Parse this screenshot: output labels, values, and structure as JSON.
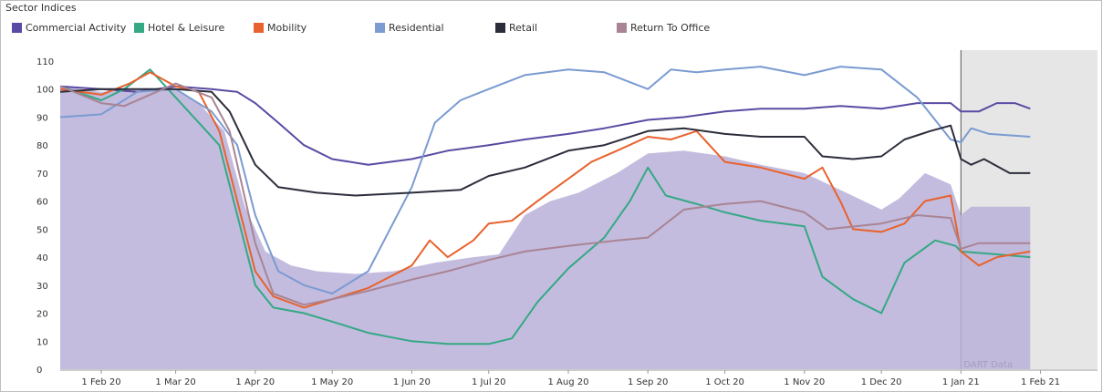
{
  "chart_data": {
    "type": "line",
    "title": "Sector Indices",
    "ylim": [
      0,
      110
    ],
    "yticks": [
      0,
      10,
      20,
      30,
      40,
      50,
      60,
      70,
      80,
      90,
      100,
      110
    ],
    "xticks": [
      {
        "date": "2020-02-01",
        "label": "1 Feb 20"
      },
      {
        "date": "2020-03-01",
        "label": "1 Mar 20"
      },
      {
        "date": "2020-04-01",
        "label": "1 Apr 20"
      },
      {
        "date": "2020-05-01",
        "label": "1 May 20"
      },
      {
        "date": "2020-06-01",
        "label": "1 Jun 20"
      },
      {
        "date": "2020-07-01",
        "label": "1 Jul 20"
      },
      {
        "date": "2020-08-01",
        "label": "1 Aug 20"
      },
      {
        "date": "2020-09-01",
        "label": "1 Sep 20"
      },
      {
        "date": "2020-10-01",
        "label": "1 Oct 20"
      },
      {
        "date": "2020-11-01",
        "label": "1 Nov 20"
      },
      {
        "date": "2020-12-01",
        "label": "1 Dec 20"
      },
      {
        "date": "2021-01-01",
        "label": "1 Jan 21"
      },
      {
        "date": "2021-02-01",
        "label": "1 Feb 21"
      }
    ],
    "xrange": [
      "2020-01-16",
      "2021-02-04"
    ],
    "shaded_region": {
      "start": "2021-01-01",
      "end": "2021-02-04",
      "label": "DART Data",
      "color": "#e6e6e6"
    },
    "grid": false,
    "legend_position": "top",
    "series": [
      {
        "name": "Commercial Activity",
        "color": "#5b4aa3",
        "style": "line",
        "points": [
          [
            "2020-01-16",
            101
          ],
          [
            "2020-02-01",
            100
          ],
          [
            "2020-02-15",
            99
          ],
          [
            "2020-03-01",
            101
          ],
          [
            "2020-03-15",
            100
          ],
          [
            "2020-03-25",
            99
          ],
          [
            "2020-04-01",
            95
          ],
          [
            "2020-04-10",
            88
          ],
          [
            "2020-04-20",
            80
          ],
          [
            "2020-05-01",
            75
          ],
          [
            "2020-05-15",
            73
          ],
          [
            "2020-06-01",
            75
          ],
          [
            "2020-06-15",
            78
          ],
          [
            "2020-07-01",
            80
          ],
          [
            "2020-07-15",
            82
          ],
          [
            "2020-08-01",
            84
          ],
          [
            "2020-08-15",
            86
          ],
          [
            "2020-09-01",
            89
          ],
          [
            "2020-09-15",
            90
          ],
          [
            "2020-10-01",
            92
          ],
          [
            "2020-10-15",
            93
          ],
          [
            "2020-11-01",
            93
          ],
          [
            "2020-11-15",
            94
          ],
          [
            "2020-12-01",
            93
          ],
          [
            "2020-12-15",
            95
          ],
          [
            "2020-12-28",
            95
          ],
          [
            "2021-01-01",
            92
          ],
          [
            "2021-01-08",
            92
          ],
          [
            "2021-01-15",
            95
          ],
          [
            "2021-01-22",
            95
          ],
          [
            "2021-01-28",
            93
          ]
        ]
      },
      {
        "name": "Hotel & Leisure",
        "color": "#35a884",
        "style": "line",
        "points": [
          [
            "2020-01-16",
            101
          ],
          [
            "2020-02-01",
            96
          ],
          [
            "2020-02-10",
            100
          ],
          [
            "2020-02-20",
            107
          ],
          [
            "2020-03-01",
            97
          ],
          [
            "2020-03-10",
            88
          ],
          [
            "2020-03-18",
            80
          ],
          [
            "2020-03-25",
            55
          ],
          [
            "2020-04-01",
            30
          ],
          [
            "2020-04-08",
            22
          ],
          [
            "2020-04-20",
            20
          ],
          [
            "2020-05-01",
            17
          ],
          [
            "2020-05-15",
            13
          ],
          [
            "2020-06-01",
            10
          ],
          [
            "2020-06-15",
            9
          ],
          [
            "2020-07-01",
            9
          ],
          [
            "2020-07-10",
            11
          ],
          [
            "2020-07-20",
            24
          ],
          [
            "2020-08-01",
            36
          ],
          [
            "2020-08-15",
            47
          ],
          [
            "2020-08-25",
            60
          ],
          [
            "2020-09-01",
            72
          ],
          [
            "2020-09-08",
            62
          ],
          [
            "2020-09-20",
            59
          ],
          [
            "2020-10-01",
            56
          ],
          [
            "2020-10-15",
            53
          ],
          [
            "2020-11-01",
            51
          ],
          [
            "2020-11-08",
            33
          ],
          [
            "2020-11-20",
            25
          ],
          [
            "2020-12-01",
            20
          ],
          [
            "2020-12-10",
            38
          ],
          [
            "2020-12-22",
            46
          ],
          [
            "2020-12-30",
            44
          ],
          [
            "2021-01-01",
            42
          ],
          [
            "2021-01-15",
            41
          ],
          [
            "2021-01-28",
            40
          ]
        ]
      },
      {
        "name": "Mobility",
        "color": "#e8622d",
        "style": "line",
        "points": [
          [
            "2020-01-16",
            100
          ],
          [
            "2020-02-01",
            98
          ],
          [
            "2020-02-12",
            102
          ],
          [
            "2020-02-20",
            106
          ],
          [
            "2020-03-01",
            101
          ],
          [
            "2020-03-10",
            99
          ],
          [
            "2020-03-18",
            85
          ],
          [
            "2020-03-25",
            60
          ],
          [
            "2020-04-01",
            35
          ],
          [
            "2020-04-08",
            26
          ],
          [
            "2020-04-20",
            22
          ],
          [
            "2020-05-01",
            25
          ],
          [
            "2020-05-15",
            29
          ],
          [
            "2020-06-01",
            37
          ],
          [
            "2020-06-08",
            46
          ],
          [
            "2020-06-15",
            40
          ],
          [
            "2020-06-25",
            46
          ],
          [
            "2020-07-01",
            52
          ],
          [
            "2020-07-10",
            53
          ],
          [
            "2020-07-20",
            60
          ],
          [
            "2020-08-01",
            68
          ],
          [
            "2020-08-10",
            74
          ],
          [
            "2020-08-20",
            78
          ],
          [
            "2020-09-01",
            83
          ],
          [
            "2020-09-10",
            82
          ],
          [
            "2020-09-20",
            85
          ],
          [
            "2020-10-01",
            74
          ],
          [
            "2020-10-15",
            72
          ],
          [
            "2020-11-01",
            68
          ],
          [
            "2020-11-08",
            72
          ],
          [
            "2020-11-15",
            60
          ],
          [
            "2020-11-20",
            50
          ],
          [
            "2020-12-01",
            49
          ],
          [
            "2020-12-10",
            52
          ],
          [
            "2020-12-18",
            60
          ],
          [
            "2020-12-28",
            62
          ],
          [
            "2021-01-01",
            42
          ],
          [
            "2021-01-08",
            37
          ],
          [
            "2021-01-15",
            40
          ],
          [
            "2021-01-28",
            42
          ]
        ]
      },
      {
        "name": "Residential",
        "color": "#7b9bd1",
        "style": "line",
        "points": [
          [
            "2020-01-16",
            90
          ],
          [
            "2020-02-01",
            91
          ],
          [
            "2020-02-15",
            99
          ],
          [
            "2020-03-01",
            100
          ],
          [
            "2020-03-15",
            92
          ],
          [
            "2020-03-25",
            80
          ],
          [
            "2020-04-01",
            55
          ],
          [
            "2020-04-10",
            35
          ],
          [
            "2020-04-20",
            30
          ],
          [
            "2020-05-01",
            27
          ],
          [
            "2020-05-15",
            35
          ],
          [
            "2020-06-01",
            65
          ],
          [
            "2020-06-10",
            88
          ],
          [
            "2020-06-20",
            96
          ],
          [
            "2020-07-01",
            100
          ],
          [
            "2020-07-15",
            105
          ],
          [
            "2020-08-01",
            107
          ],
          [
            "2020-08-15",
            106
          ],
          [
            "2020-09-01",
            100
          ],
          [
            "2020-09-10",
            107
          ],
          [
            "2020-09-20",
            106
          ],
          [
            "2020-10-01",
            107
          ],
          [
            "2020-10-15",
            108
          ],
          [
            "2020-11-01",
            105
          ],
          [
            "2020-11-15",
            108
          ],
          [
            "2020-12-01",
            107
          ],
          [
            "2020-12-15",
            97
          ],
          [
            "2020-12-28",
            82
          ],
          [
            "2021-01-01",
            81
          ],
          [
            "2021-01-05",
            86
          ],
          [
            "2021-01-12",
            84
          ],
          [
            "2021-01-28",
            83
          ]
        ]
      },
      {
        "name": "Retail",
        "color": "#2b2d3b",
        "style": "line",
        "points": [
          [
            "2020-01-16",
            99
          ],
          [
            "2020-02-01",
            100
          ],
          [
            "2020-03-01",
            100
          ],
          [
            "2020-03-15",
            99
          ],
          [
            "2020-03-22",
            92
          ],
          [
            "2020-04-01",
            73
          ],
          [
            "2020-04-10",
            65
          ],
          [
            "2020-04-25",
            63
          ],
          [
            "2020-05-10",
            62
          ],
          [
            "2020-06-01",
            63
          ],
          [
            "2020-06-20",
            64
          ],
          [
            "2020-07-01",
            69
          ],
          [
            "2020-07-15",
            72
          ],
          [
            "2020-08-01",
            78
          ],
          [
            "2020-08-15",
            80
          ],
          [
            "2020-09-01",
            85
          ],
          [
            "2020-09-15",
            86
          ],
          [
            "2020-10-01",
            84
          ],
          [
            "2020-10-15",
            83
          ],
          [
            "2020-11-01",
            83
          ],
          [
            "2020-11-08",
            76
          ],
          [
            "2020-11-20",
            75
          ],
          [
            "2020-12-01",
            76
          ],
          [
            "2020-12-10",
            82
          ],
          [
            "2020-12-20",
            85
          ],
          [
            "2020-12-28",
            87
          ],
          [
            "2021-01-01",
            75
          ],
          [
            "2021-01-05",
            73
          ],
          [
            "2021-01-10",
            75
          ],
          [
            "2021-01-20",
            70
          ],
          [
            "2021-01-28",
            70
          ]
        ]
      },
      {
        "name": "Return To Office",
        "color": "#a98494",
        "style": "line",
        "points": [
          [
            "2020-01-16",
            101
          ],
          [
            "2020-02-01",
            95
          ],
          [
            "2020-02-10",
            94
          ],
          [
            "2020-02-20",
            98
          ],
          [
            "2020-03-01",
            102
          ],
          [
            "2020-03-15",
            97
          ],
          [
            "2020-03-22",
            85
          ],
          [
            "2020-04-01",
            45
          ],
          [
            "2020-04-08",
            27
          ],
          [
            "2020-04-20",
            23
          ],
          [
            "2020-05-01",
            25
          ],
          [
            "2020-05-15",
            28
          ],
          [
            "2020-06-01",
            32
          ],
          [
            "2020-06-15",
            35
          ],
          [
            "2020-07-01",
            39
          ],
          [
            "2020-07-15",
            42
          ],
          [
            "2020-08-01",
            44
          ],
          [
            "2020-08-20",
            46
          ],
          [
            "2020-09-01",
            47
          ],
          [
            "2020-09-15",
            57
          ],
          [
            "2020-10-01",
            59
          ],
          [
            "2020-10-15",
            60
          ],
          [
            "2020-11-01",
            56
          ],
          [
            "2020-11-10",
            50
          ],
          [
            "2020-12-01",
            52
          ],
          [
            "2020-12-15",
            55
          ],
          [
            "2020-12-28",
            54
          ],
          [
            "2021-01-01",
            43
          ],
          [
            "2021-01-08",
            45
          ],
          [
            "2021-01-28",
            45
          ]
        ]
      },
      {
        "name": "Commercial Activity (area)",
        "color": "#b8b0d8",
        "style": "area",
        "points": [
          [
            "2020-01-16",
            101
          ],
          [
            "2020-02-01",
            99
          ],
          [
            "2020-02-15",
            100
          ],
          [
            "2020-03-01",
            100
          ],
          [
            "2020-03-10",
            95
          ],
          [
            "2020-03-20",
            85
          ],
          [
            "2020-03-28",
            58
          ],
          [
            "2020-04-05",
            42
          ],
          [
            "2020-04-15",
            37
          ],
          [
            "2020-04-25",
            35
          ],
          [
            "2020-05-10",
            34
          ],
          [
            "2020-05-25",
            35
          ],
          [
            "2020-06-10",
            38
          ],
          [
            "2020-06-25",
            40
          ],
          [
            "2020-07-05",
            41
          ],
          [
            "2020-07-15",
            55
          ],
          [
            "2020-07-25",
            60
          ],
          [
            "2020-08-05",
            63
          ],
          [
            "2020-08-20",
            70
          ],
          [
            "2020-09-01",
            77
          ],
          [
            "2020-09-15",
            78
          ],
          [
            "2020-10-01",
            76
          ],
          [
            "2020-10-15",
            73
          ],
          [
            "2020-11-01",
            70
          ],
          [
            "2020-11-15",
            64
          ],
          [
            "2020-12-01",
            57
          ],
          [
            "2020-12-08",
            61
          ],
          [
            "2020-12-18",
            70
          ],
          [
            "2020-12-28",
            66
          ],
          [
            "2021-01-01",
            55
          ],
          [
            "2021-01-05",
            58
          ],
          [
            "2021-01-28",
            58
          ]
        ]
      }
    ]
  },
  "legend": {
    "title": "Sector Indices",
    "items": [
      {
        "label": "Commercial Activity",
        "color": "#5b4aa3"
      },
      {
        "label": "Hotel & Leisure",
        "color": "#35a884"
      },
      {
        "label": "Mobility",
        "color": "#e8622d"
      },
      {
        "label": "Residential",
        "color": "#7b9bd1"
      },
      {
        "label": "Retail",
        "color": "#2b2d3b"
      },
      {
        "label": "Return To Office",
        "color": "#a98494"
      }
    ]
  }
}
